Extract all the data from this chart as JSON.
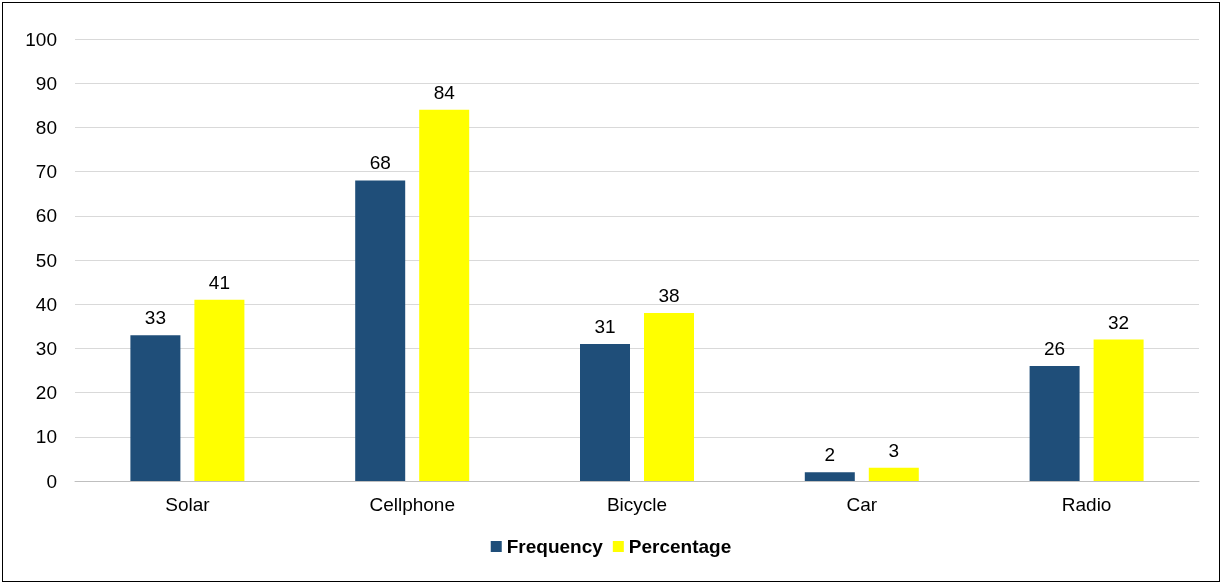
{
  "chart_data": {
    "type": "bar",
    "categories": [
      "Solar",
      "Cellphone",
      "Bicycle",
      "Car",
      "Radio"
    ],
    "series": [
      {
        "name": "Frequency",
        "color": "#1f4e79",
        "values": [
          33,
          68,
          31,
          2,
          26
        ]
      },
      {
        "name": "Percentage",
        "color": "#ffff00",
        "values": [
          41,
          84,
          38,
          3,
          32
        ]
      }
    ],
    "ylim": [
      0,
      100
    ],
    "yticks": [
      0,
      10,
      20,
      30,
      40,
      50,
      60,
      70,
      80,
      90,
      100
    ],
    "grid": "y",
    "legend": "bottom",
    "data_labels": true
  }
}
